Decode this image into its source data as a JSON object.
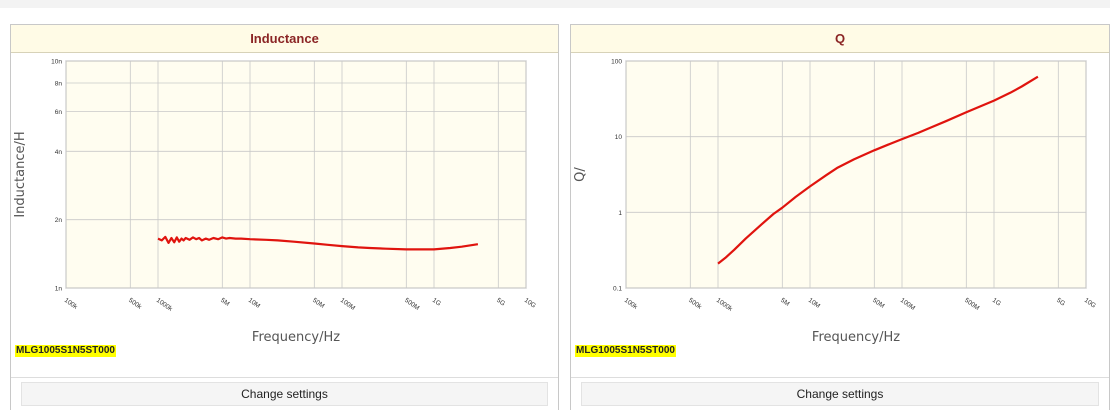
{
  "colors": {
    "curve": "#e0140e",
    "plot_bg": "#fffdf0",
    "grid": "#c8c8c8",
    "header_title": "#8b2525",
    "highlight": "#ffff00"
  },
  "panels": [
    {
      "title": "Inductance",
      "part_number": "MLG1005S1N5ST000",
      "settings_label": "Change settings"
    },
    {
      "title": "Q",
      "part_number": "MLG1005S1N5ST000",
      "settings_label": "Change settings"
    }
  ],
  "chart_data": [
    {
      "type": "line",
      "title": "Inductance",
      "xlabel": "Frequency/Hz",
      "ylabel": "Inductance/H",
      "x_scale": "log",
      "y_scale": "log",
      "xlim": [
        100000,
        10000000000
      ],
      "ylim": [
        1e-09,
        1e-08
      ],
      "x_ticks": [
        {
          "value": 100000,
          "label": "100k"
        },
        {
          "value": 500000,
          "label": "500k"
        },
        {
          "value": 1000000,
          "label": "1000k"
        },
        {
          "value": 5000000,
          "label": "5M"
        },
        {
          "value": 10000000,
          "label": "10M"
        },
        {
          "value": 50000000,
          "label": "50M"
        },
        {
          "value": 100000000,
          "label": "100M"
        },
        {
          "value": 500000000,
          "label": "500M"
        },
        {
          "value": 1000000000,
          "label": "1G"
        },
        {
          "value": 5000000000,
          "label": "5G"
        },
        {
          "value": 10000000000,
          "label": "10G"
        }
      ],
      "y_ticks": [
        {
          "value": 1e-09,
          "label": "1n"
        },
        {
          "value": 2e-09,
          "label": "2n"
        },
        {
          "value": 4e-09,
          "label": "4n"
        },
        {
          "value": 6e-09,
          "label": "6n"
        },
        {
          "value": 8e-09,
          "label": "8n"
        },
        {
          "value": 1e-08,
          "label": "10n"
        }
      ],
      "grid": true,
      "series": [
        {
          "x": [
            1000000,
            1100000,
            1200000,
            1300000,
            1400000,
            1500000,
            1600000,
            1700000,
            1800000,
            1900000,
            2000000,
            2200000,
            2400000,
            2600000,
            2800000,
            3000000,
            3300000,
            3600000,
            4000000,
            4500000,
            5000000,
            5500000,
            6000000,
            7000000,
            8000000,
            10000000,
            15000000,
            20000000,
            30000000,
            50000000,
            70000000,
            100000000,
            150000000,
            200000000,
            300000000,
            500000000,
            700000000,
            1000000000,
            1500000000,
            2000000000,
            3000000000
          ],
          "y": [
            1.65e-09,
            1.62e-09,
            1.68e-09,
            1.58e-09,
            1.66e-09,
            1.59e-09,
            1.67e-09,
            1.6e-09,
            1.65e-09,
            1.62e-09,
            1.66e-09,
            1.63e-09,
            1.67e-09,
            1.64e-09,
            1.66e-09,
            1.62e-09,
            1.65e-09,
            1.63e-09,
            1.66e-09,
            1.64e-09,
            1.67e-09,
            1.65e-09,
            1.66e-09,
            1.65e-09,
            1.65e-09,
            1.64e-09,
            1.63e-09,
            1.62e-09,
            1.6e-09,
            1.57e-09,
            1.55e-09,
            1.53e-09,
            1.51e-09,
            1.5e-09,
            1.49e-09,
            1.48e-09,
            1.48e-09,
            1.48e-09,
            1.5e-09,
            1.52e-09,
            1.56e-09
          ]
        }
      ]
    },
    {
      "type": "line",
      "title": "Q",
      "xlabel": "Frequency/Hz",
      "ylabel": "Q/",
      "x_scale": "log",
      "y_scale": "log",
      "xlim": [
        100000,
        10000000000
      ],
      "ylim": [
        0.1,
        100
      ],
      "x_ticks": [
        {
          "value": 100000,
          "label": "100k"
        },
        {
          "value": 500000,
          "label": "500k"
        },
        {
          "value": 1000000,
          "label": "1000k"
        },
        {
          "value": 5000000,
          "label": "5M"
        },
        {
          "value": 10000000,
          "label": "10M"
        },
        {
          "value": 50000000,
          "label": "50M"
        },
        {
          "value": 100000000,
          "label": "100M"
        },
        {
          "value": 500000000,
          "label": "500M"
        },
        {
          "value": 1000000000,
          "label": "1G"
        },
        {
          "value": 5000000000,
          "label": "5G"
        },
        {
          "value": 10000000000,
          "label": "10G"
        }
      ],
      "y_ticks": [
        {
          "value": 0.1,
          "label": "0.1"
        },
        {
          "value": 1,
          "label": "1"
        },
        {
          "value": 10,
          "label": "10"
        },
        {
          "value": 100,
          "label": "100"
        }
      ],
      "grid": true,
      "series": [
        {
          "x": [
            1000000,
            1200000,
            1500000,
            2000000,
            3000000,
            4000000,
            5000000,
            7000000,
            10000000,
            15000000,
            20000000,
            30000000,
            50000000,
            70000000,
            100000000,
            150000000,
            200000000,
            300000000,
            500000000,
            700000000,
            1000000000,
            1500000000,
            2000000000,
            3000000000
          ],
          "y": [
            0.21,
            0.25,
            0.32,
            0.45,
            0.7,
            0.95,
            1.15,
            1.6,
            2.2,
            3.1,
            3.9,
            5.0,
            6.6,
            7.8,
            9.3,
            11.2,
            13.0,
            16.0,
            21.0,
            25.0,
            30.0,
            38.0,
            46.0,
            62.0
          ]
        }
      ]
    }
  ]
}
